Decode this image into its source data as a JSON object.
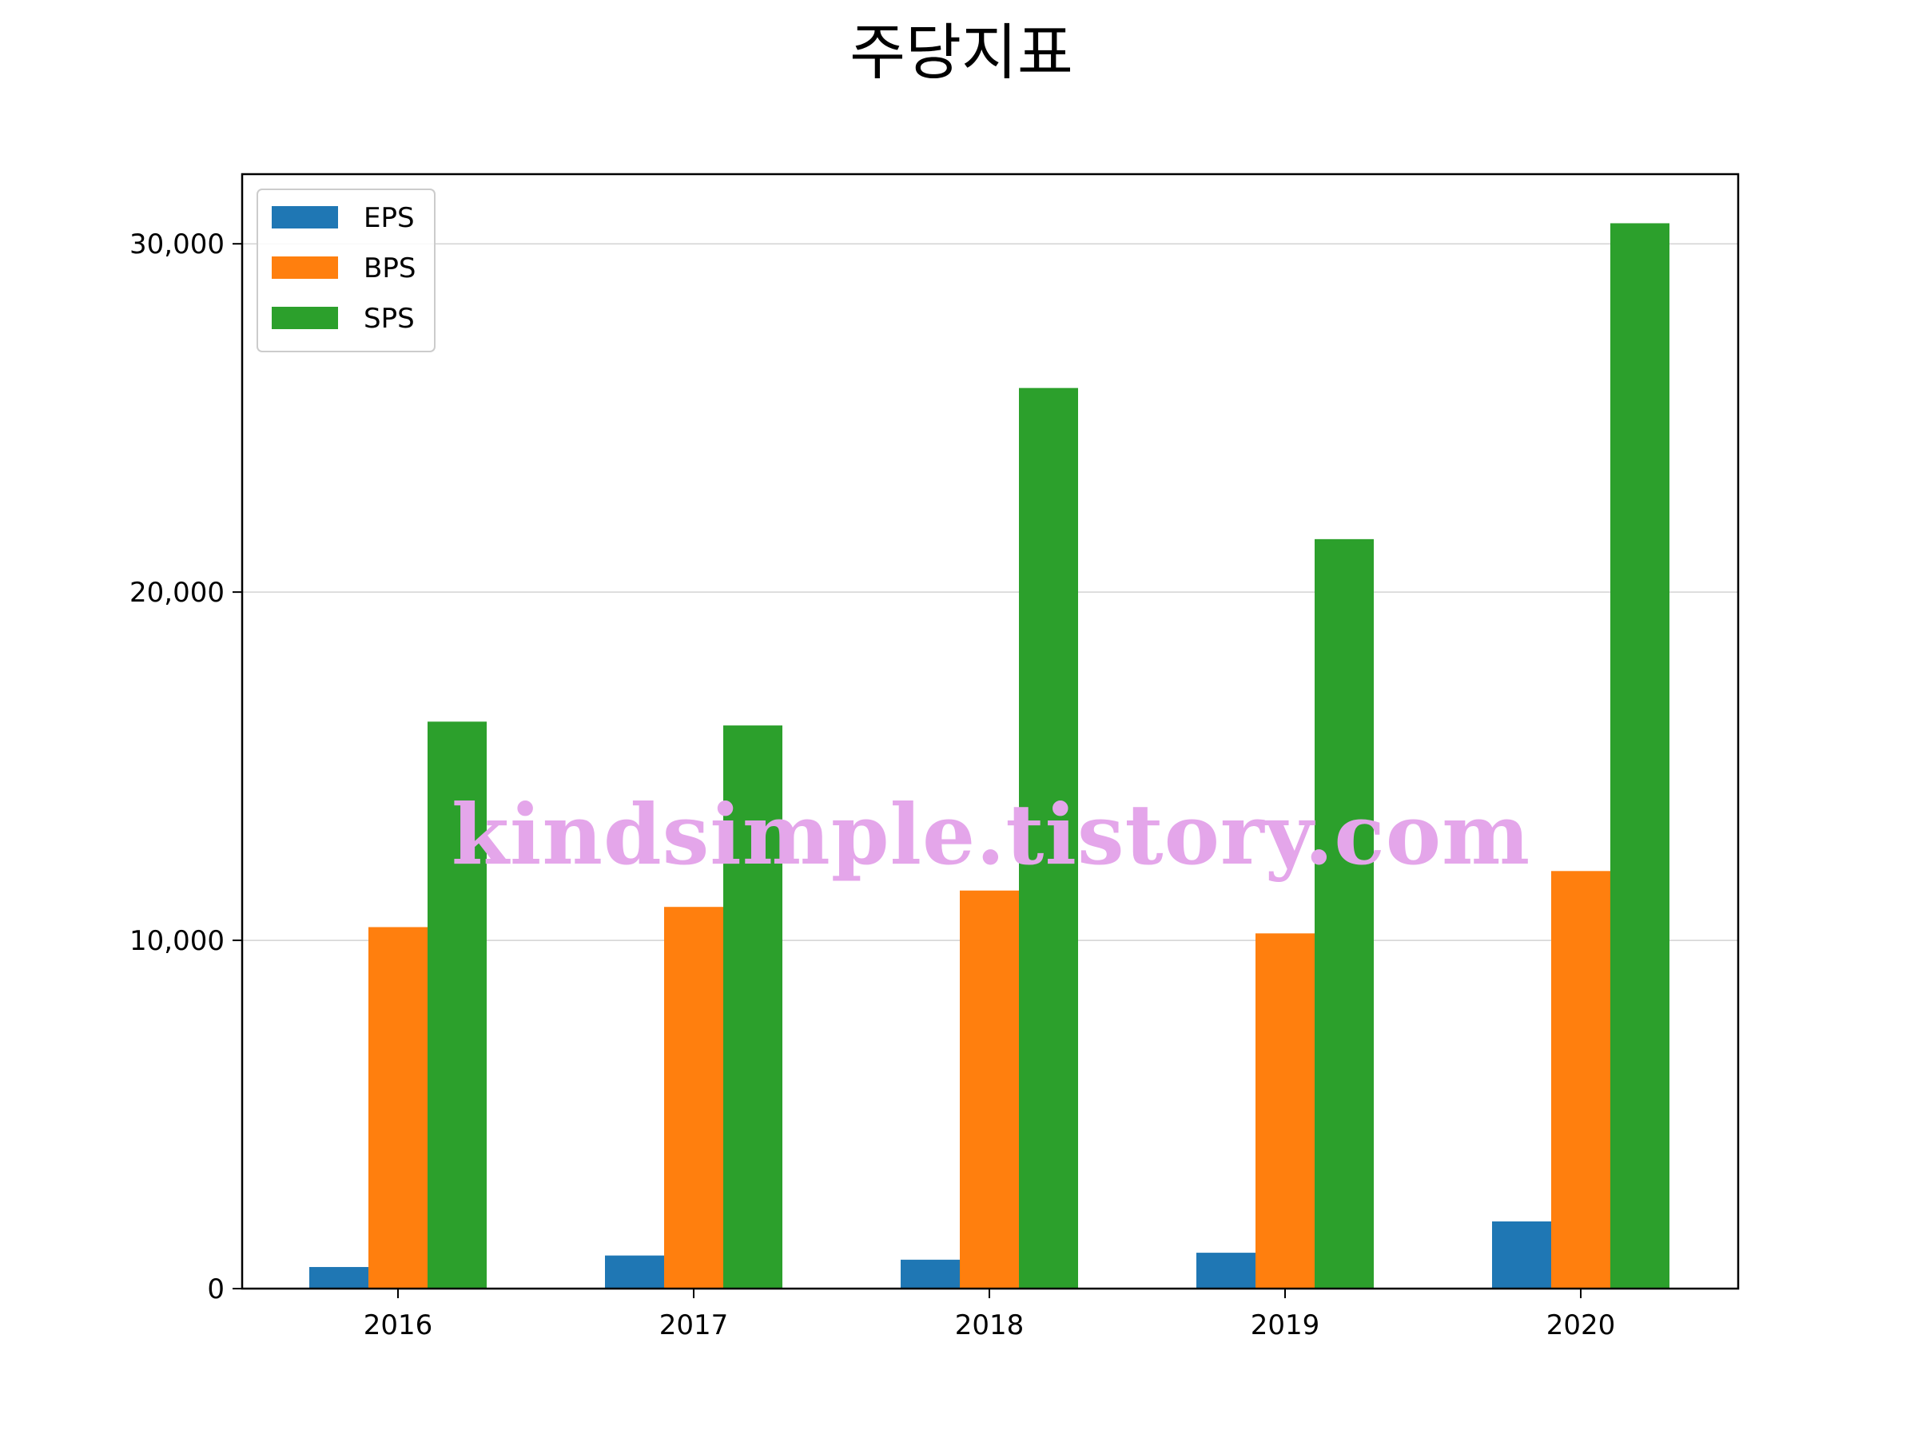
{
  "chart_data": {
    "type": "bar",
    "title": "주당지표",
    "xlabel": "",
    "ylabel": "",
    "categories": [
      "2016",
      "2017",
      "2018",
      "2019",
      "2020"
    ],
    "series": [
      {
        "name": "EPS",
        "color": "#1f77b4",
        "values": [
          620,
          950,
          830,
          1030,
          1930
        ]
      },
      {
        "name": "BPS",
        "color": "#ff7f0e",
        "values": [
          10380,
          10960,
          11430,
          10200,
          11990
        ]
      },
      {
        "name": "SPS",
        "color": "#2ca02c",
        "values": [
          16280,
          16170,
          25860,
          21520,
          30590
        ]
      }
    ],
    "ylim": [
      0,
      32000
    ],
    "yticks": [
      0,
      10000,
      20000,
      30000
    ],
    "ytick_labels": [
      "0",
      "10,000",
      "20,000",
      "30,000"
    ],
    "grid": "horizontal",
    "legend_position": "top-left",
    "watermark": "kindsimple.tistory.com"
  }
}
